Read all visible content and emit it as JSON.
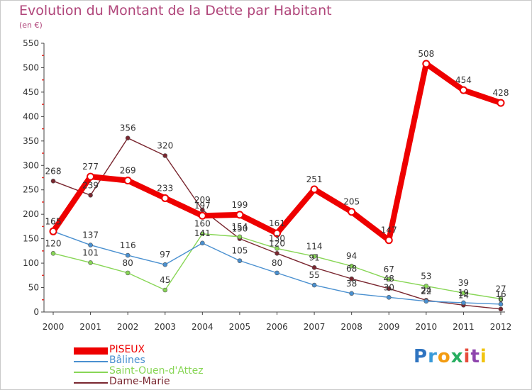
{
  "header": {
    "title": "Evolution du Montant de la Dette par Habitant",
    "subtitle": "(en €)"
  },
  "logo": {
    "text": "Proxiti",
    "letters": [
      "P",
      "r",
      "o",
      "x",
      "i",
      "t",
      "i"
    ],
    "letter_colors": [
      "#2f74c0",
      "#3a9ad9",
      "#f39c12",
      "#27ae60",
      "#e74c3c",
      "#8e44ad",
      "#f1c40f"
    ]
  },
  "chart_data": {
    "type": "line",
    "title": "Evolution du Montant de la Dette par Habitant",
    "subtitle": "(en €)",
    "x": [
      "2000",
      "2001",
      "2002",
      "2003",
      "2004",
      "2005",
      "2006",
      "2007",
      "2008",
      "2009",
      "2010",
      "2011",
      "2012"
    ],
    "ylim": [
      0,
      550
    ],
    "yticks": [
      0,
      50,
      100,
      150,
      200,
      250,
      300,
      350,
      400,
      450,
      500,
      550
    ],
    "grid": false,
    "legend_position": "bottom-left",
    "series": [
      {
        "name": "PISEUX",
        "color": "#ee0000",
        "values": [
          165,
          277,
          269,
          233,
          197,
          199,
          161,
          251,
          205,
          147,
          508,
          454,
          428
        ]
      },
      {
        "name": "Bâlines",
        "color": "#4a90d0",
        "values": [
          165,
          137,
          116,
          97,
          141,
          105,
          80,
          55,
          38,
          30,
          22,
          19,
          16
        ]
      },
      {
        "name": "Saint-Ouen-d'Attez",
        "color": "#88d656",
        "values": [
          120,
          101,
          80,
          45,
          160,
          154,
          130,
          114,
          94,
          67,
          53,
          39,
          27
        ]
      },
      {
        "name": "Dame-Marie",
        "color": "#7a2730",
        "values": [
          268,
          239,
          356,
          320,
          209,
          150,
          120,
          91,
          68,
          48,
          24,
          14,
          6
        ]
      }
    ]
  }
}
